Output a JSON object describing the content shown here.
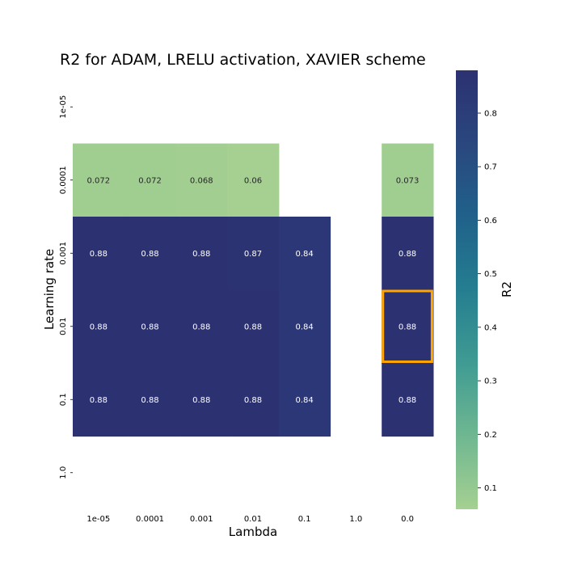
{
  "chart_data": {
    "type": "heatmap",
    "title": "R2 for ADAM, LRELU activation, XAVIER scheme",
    "xlabel": "Lambda",
    "ylabel": "Learning rate",
    "x_categories": [
      "1e-05",
      "0.0001",
      "0.001",
      "0.01",
      "0.1",
      "1.0",
      "0.0"
    ],
    "y_categories": [
      "1e-05",
      "0.0001",
      "0.001",
      "0.01",
      "0.1",
      "1.0"
    ],
    "values": [
      [
        null,
        null,
        null,
        null,
        null,
        null,
        null
      ],
      [
        0.072,
        0.072,
        0.068,
        0.06,
        null,
        null,
        0.073
      ],
      [
        0.88,
        0.88,
        0.88,
        0.87,
        0.84,
        null,
        0.88
      ],
      [
        0.88,
        0.88,
        0.88,
        0.88,
        0.84,
        null,
        0.88
      ],
      [
        0.88,
        0.88,
        0.88,
        0.88,
        0.84,
        null,
        0.88
      ],
      [
        null,
        null,
        null,
        null,
        null,
        null,
        null
      ]
    ],
    "highlight": {
      "row": "0.01",
      "col": "0.0",
      "color": "#FFA500"
    },
    "colorbar": {
      "label": "R2",
      "range": [
        0.06,
        0.88
      ],
      "ticks": [
        "0.1",
        "0.2",
        "0.3",
        "0.4",
        "0.5",
        "0.6",
        "0.7",
        "0.8"
      ],
      "colormap": "crest",
      "stops": [
        "#A5D091",
        "#6FB791",
        "#3F9B93",
        "#247E90",
        "#20618A",
        "#2A477E",
        "#2C3172"
      ]
    },
    "colors": {
      "highlight": "#FFA500"
    }
  }
}
